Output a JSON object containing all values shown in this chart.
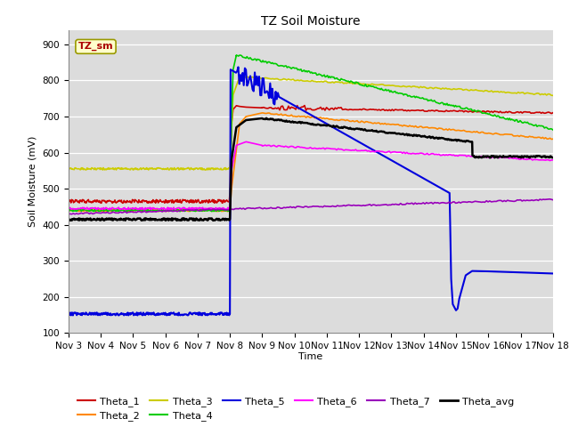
{
  "title": "TZ Soil Moisture",
  "xlabel": "Time",
  "ylabel": "Soil Moisture (mV)",
  "ylim": [
    100,
    940
  ],
  "yticks": [
    100,
    200,
    300,
    400,
    500,
    600,
    700,
    800,
    900
  ],
  "background_color": "#dcdcdc",
  "label_box": "TZ_sm",
  "series": {
    "Theta_1": {
      "color": "#cc0000",
      "lw": 1.2
    },
    "Theta_2": {
      "color": "#ff8800",
      "lw": 1.2
    },
    "Theta_3": {
      "color": "#cccc00",
      "lw": 1.2
    },
    "Theta_4": {
      "color": "#00cc00",
      "lw": 1.2
    },
    "Theta_5": {
      "color": "#0000dd",
      "lw": 1.5
    },
    "Theta_6": {
      "color": "#ff00ff",
      "lw": 1.2
    },
    "Theta_7": {
      "color": "#9900bb",
      "lw": 1.2
    },
    "Theta_avg": {
      "color": "#000000",
      "lw": 1.8
    }
  },
  "x_start": 0,
  "x_end": 15,
  "xtick_labels": [
    "Nov 3",
    "Nov 4",
    "Nov 5",
    "Nov 6",
    "Nov 7",
    "Nov 8",
    "Nov 9",
    "Nov 10",
    "Nov 11",
    "Nov 12",
    "Nov 13",
    "Nov 14",
    "Nov 15",
    "Nov 16",
    "Nov 17",
    "Nov 18"
  ],
  "xtick_positions": [
    0,
    1,
    2,
    3,
    4,
    5,
    6,
    7,
    8,
    9,
    10,
    11,
    12,
    13,
    14,
    15
  ]
}
